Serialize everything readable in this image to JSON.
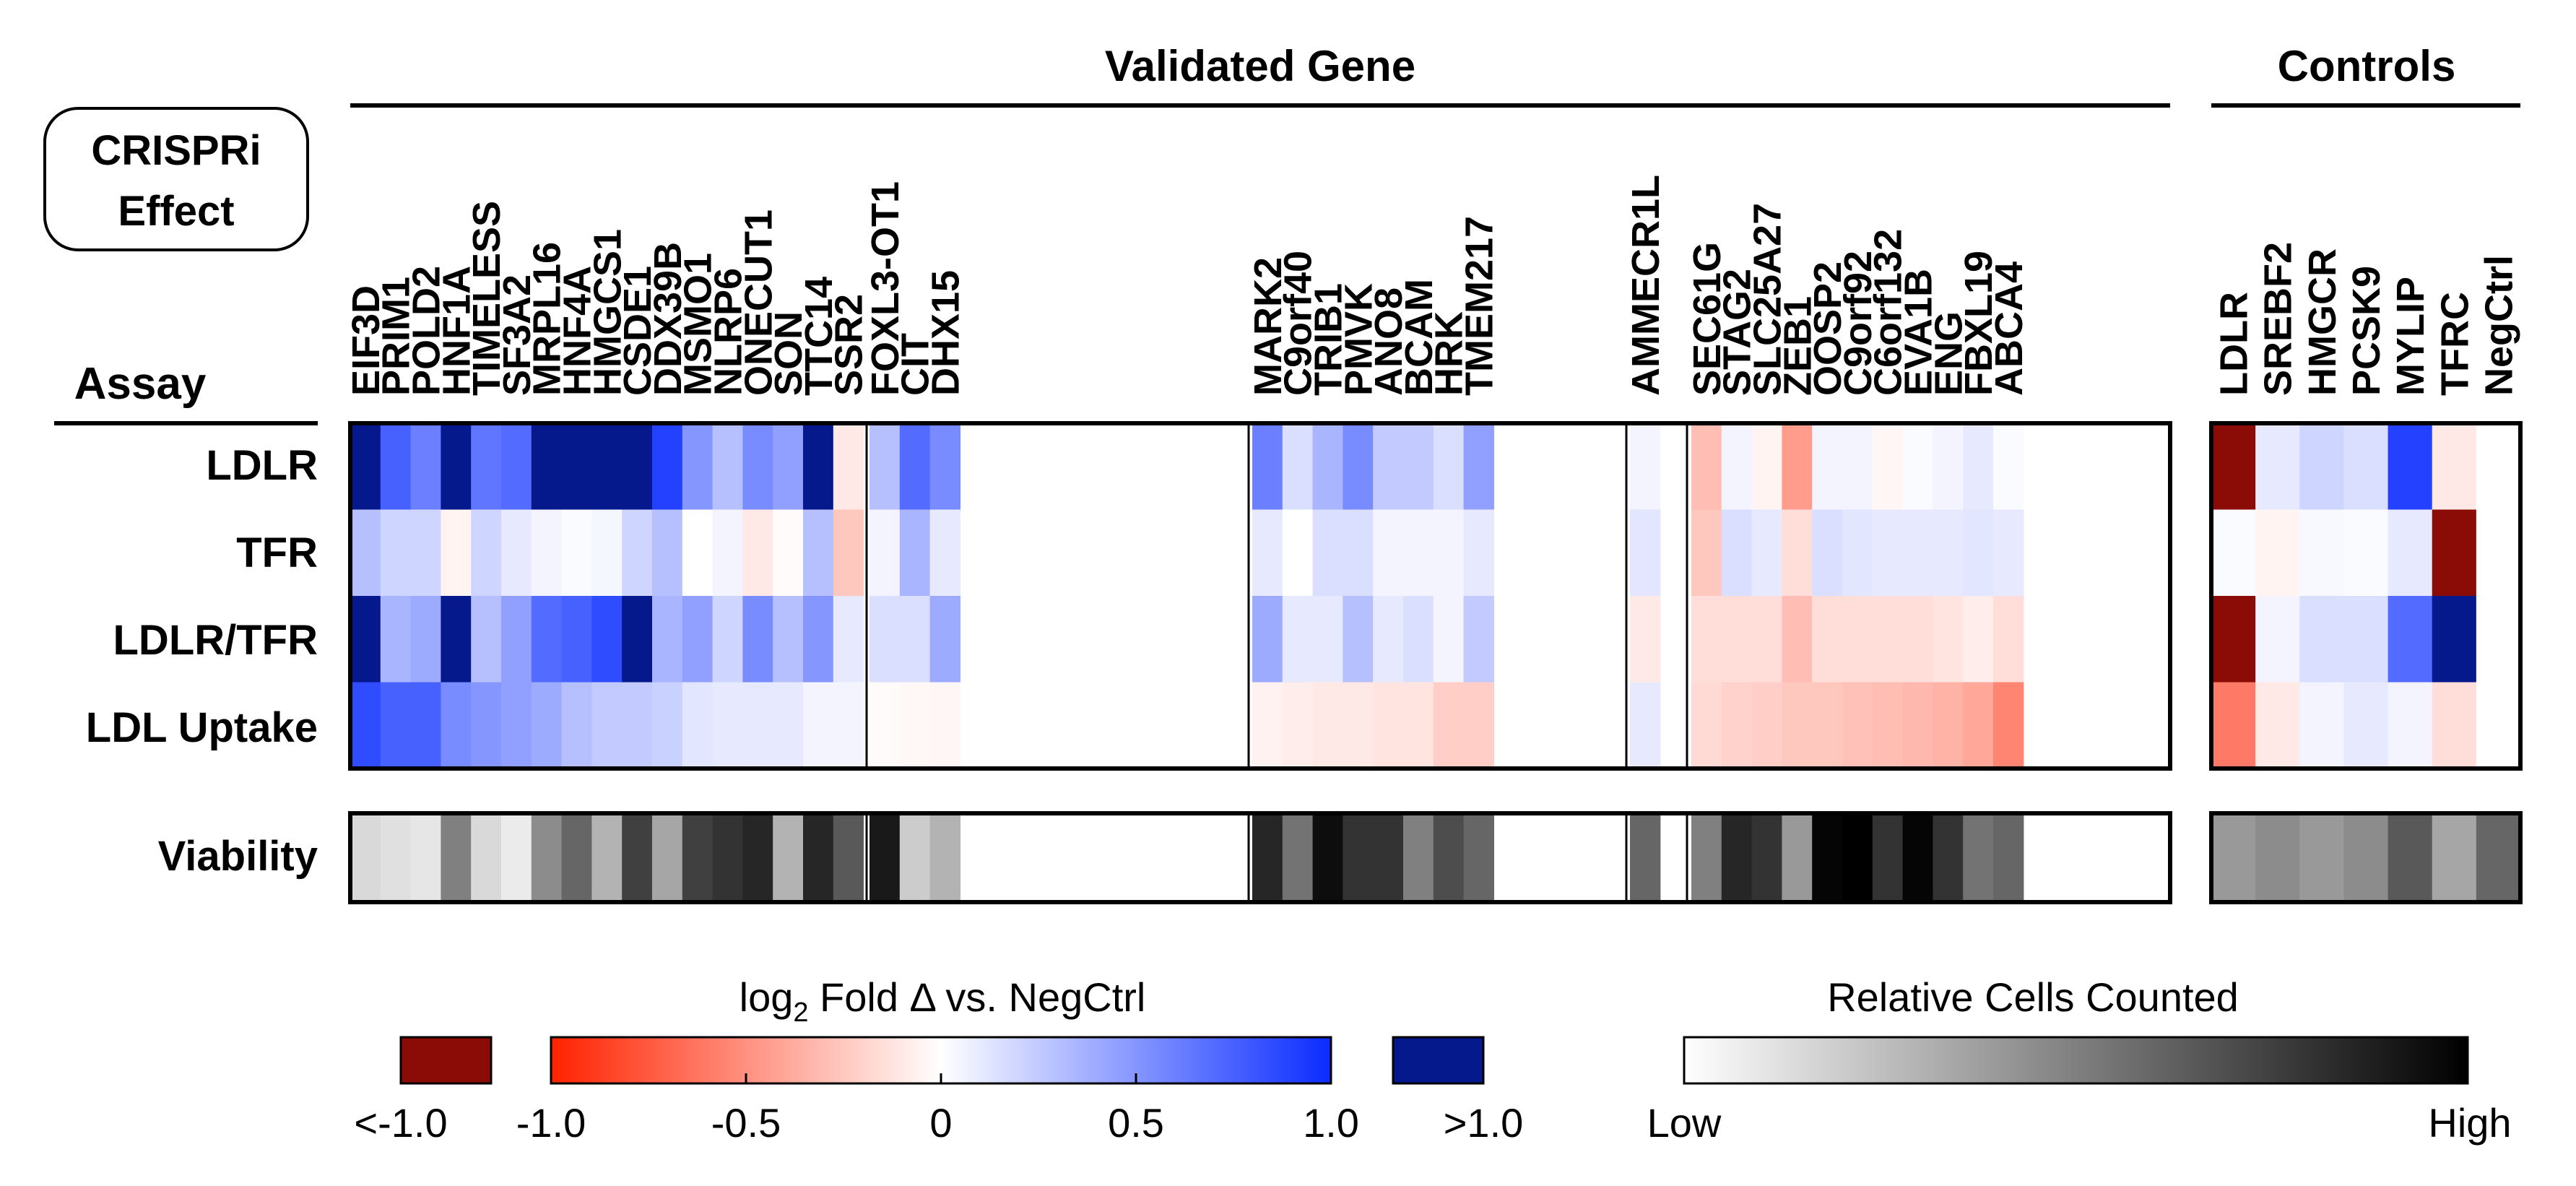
{
  "chart_data": {
    "type": "heatmap",
    "header": {
      "group_validated": "Validated Gene",
      "group_controls": "Controls",
      "crispri_line1": "CRISPRi",
      "crispri_line2": "Effect",
      "assay": "Assay"
    },
    "genes": {
      "g1": [
        "EIF3D",
        "PRIM1",
        "POLD2",
        "HNF1A",
        "TIMELESS",
        "SF3A2",
        "MRPL16",
        "HNF4A",
        "HMGCS1",
        "CSDE1",
        "DDX39B",
        "MSMO1",
        "NLRP6",
        "ONECUT1",
        "SON",
        "TTC14",
        "SSR2"
      ],
      "g2": [
        "FOXL3-OT1",
        "CIT",
        "DHX15"
      ],
      "g3": [
        "MARK2",
        "C9orf40",
        "TRIB1",
        "PMVK",
        "ANO8",
        "BCAM",
        "HRK",
        "TMEM217"
      ],
      "g4": [
        "AMMECR1L"
      ],
      "g5": [
        "SEC61G",
        "STAG2",
        "SLC25A27",
        "ZEB1",
        "OOSP2",
        "C9orf92",
        "C6orf132",
        "EVA1B",
        "ENG",
        "FBXL19",
        "ABCA4"
      ],
      "controls": [
        "LDLR",
        "SREBF2",
        "HMGCR",
        "PCSK9",
        "MYLIP",
        "TFRC",
        "NegCtrl"
      ]
    },
    "rows": [
      "LDLR",
      "TFR",
      "LDLR/TFR",
      "LDL Uptake"
    ],
    "viability_label": "Viability",
    "values": {
      "g1": [
        [
          1.2,
          0.75,
          0.6,
          1.2,
          0.65,
          0.7,
          1.2,
          1.2,
          1.2,
          1.2,
          0.9,
          0.5,
          0.3,
          0.55,
          0.45,
          1.2,
          -0.1
        ],
        [
          0.3,
          0.2,
          0.2,
          -0.05,
          0.2,
          0.1,
          0.05,
          0.02,
          0.04,
          0.2,
          0.3,
          0.0,
          0.05,
          -0.1,
          -0.02,
          0.3,
          -0.25
        ],
        [
          1.2,
          0.35,
          0.4,
          1.2,
          0.3,
          0.45,
          0.7,
          0.75,
          0.85,
          1.2,
          0.35,
          0.45,
          0.2,
          0.55,
          0.3,
          0.5,
          0.1
        ],
        [
          0.85,
          0.75,
          0.75,
          0.55,
          0.5,
          0.45,
          0.4,
          0.3,
          0.25,
          0.25,
          0.22,
          0.12,
          0.1,
          0.1,
          0.1,
          0.05,
          0.05
        ]
      ],
      "g2": [
        [
          0.3,
          0.7,
          0.55
        ],
        [
          0.05,
          0.35,
          0.1
        ],
        [
          0.15,
          0.15,
          0.4
        ],
        [
          -0.02,
          -0.03,
          -0.04
        ]
      ],
      "g3": [
        [
          0.6,
          0.15,
          0.35,
          0.55,
          0.25,
          0.25,
          0.15,
          0.45
        ],
        [
          0.1,
          0.0,
          0.15,
          0.15,
          0.05,
          0.05,
          0.05,
          0.1
        ],
        [
          0.4,
          0.1,
          0.1,
          0.3,
          0.1,
          0.15,
          0.05,
          0.25
        ],
        [
          -0.06,
          -0.08,
          -0.1,
          -0.1,
          -0.12,
          -0.12,
          -0.22,
          -0.22
        ]
      ],
      "g4": [
        [
          0.05
        ],
        [
          0.12
        ],
        [
          -0.1
        ],
        [
          0.1
        ]
      ],
      "g5": [
        [
          -0.3,
          0.05,
          -0.05,
          -0.45,
          0.05,
          0.05,
          -0.04,
          0.02,
          0.05,
          0.1,
          0.02
        ],
        [
          -0.25,
          0.15,
          0.1,
          -0.15,
          0.15,
          0.12,
          0.1,
          0.1,
          0.1,
          0.12,
          0.1
        ],
        [
          -0.15,
          -0.15,
          -0.15,
          -0.3,
          -0.15,
          -0.15,
          -0.15,
          -0.15,
          -0.12,
          -0.08,
          -0.15
        ],
        [
          -0.17,
          -0.2,
          -0.22,
          -0.25,
          -0.25,
          -0.28,
          -0.3,
          -0.32,
          -0.35,
          -0.4,
          -0.55
        ]
      ],
      "controls": [
        [
          -1.2,
          0.1,
          0.2,
          0.15,
          0.9,
          -0.1,
          0.0
        ],
        [
          0.02,
          -0.05,
          0.03,
          0.02,
          0.1,
          -1.2,
          0.0
        ],
        [
          -1.2,
          0.05,
          0.15,
          0.15,
          0.7,
          1.2,
          0.0
        ],
        [
          -0.6,
          -0.1,
          0.05,
          0.1,
          0.05,
          -0.15,
          0.0
        ]
      ]
    },
    "viability": {
      "g1": [
        0.15,
        0.12,
        0.1,
        0.5,
        0.15,
        0.08,
        0.45,
        0.6,
        0.3,
        0.75,
        0.35,
        0.75,
        0.8,
        0.85,
        0.3,
        0.85,
        0.65
      ],
      "g2": [
        0.9,
        0.2,
        0.3
      ],
      "g3": [
        0.85,
        0.55,
        0.95,
        0.8,
        0.8,
        0.5,
        0.7,
        0.6
      ],
      "g4": [
        0.6
      ],
      "g5": [
        0.5,
        0.85,
        0.8,
        0.4,
        0.98,
        1.0,
        0.8,
        0.98,
        0.8,
        0.55,
        0.6
      ],
      "controls": [
        0.4,
        0.45,
        0.4,
        0.45,
        0.65,
        0.35,
        0.6
      ]
    },
    "legend": {
      "colorbar_title_prefix": "log",
      "colorbar_title_sub": "2",
      "colorbar_title_suffix": " Fold Δ vs. NegCtrl",
      "colorbar_ticks": [
        "-1.0",
        "-0.5",
        "0",
        "0.5",
        "1.0"
      ],
      "below_label": "<-1.0",
      "above_label": ">1.0",
      "cells_title": "Relative Cells Counted",
      "cells_low": "Low",
      "cells_high": "High"
    },
    "colors": {
      "deep_red": "#8b0c06",
      "red": "#ff2200",
      "white": "#ffffff",
      "blue": "#0a2cff",
      "deep_blue": "#05188c",
      "black": "#000000"
    }
  }
}
